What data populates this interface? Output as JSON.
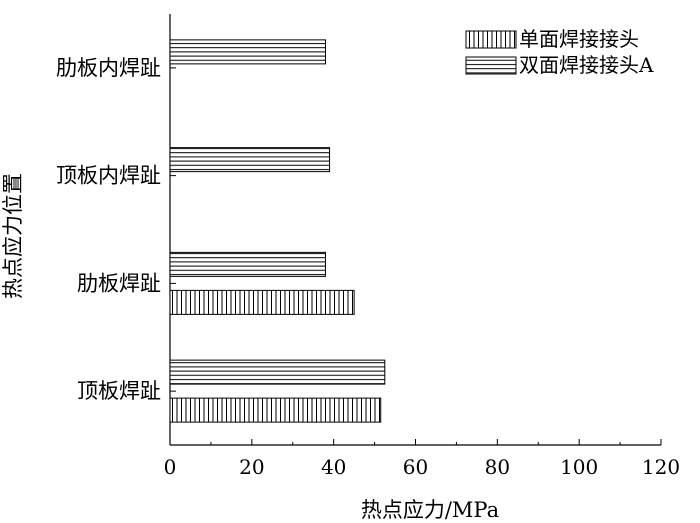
{
  "chart_data": {
    "type": "bar",
    "orientation": "horizontal",
    "categories": [
      "顶板焊趾",
      "肋板焊趾",
      "顶板内焊趾",
      "肋板内焊趾"
    ],
    "series": [
      {
        "name": "单面焊接接头",
        "pattern": "vertical-lines",
        "values": [
          51.5,
          45,
          null,
          null
        ]
      },
      {
        "name": "双面焊接接头A",
        "pattern": "horizontal-lines",
        "values": [
          52.5,
          38,
          39,
          38
        ]
      }
    ],
    "xlabel": "热点应力/MPa",
    "ylabel": "热点应力位置",
    "xlim": [
      0,
      120
    ],
    "xticks": [
      0,
      20,
      40,
      60,
      80,
      100,
      120
    ],
    "grid": false,
    "legend_position": "top-right"
  }
}
